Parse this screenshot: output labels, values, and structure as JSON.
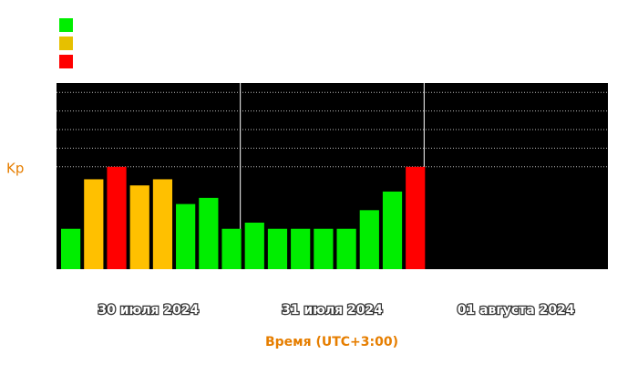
{
  "chart_data": {
    "type": "bar",
    "y_label": "Kp",
    "x_label": "Время (UTC+3:00)",
    "days": [
      "30 июля 2024",
      "31 июля 2024",
      "01 августа 2024"
    ],
    "slots_per_day": 8,
    "values": [
      1.67,
      4.33,
      5,
      4,
      4.33,
      3,
      3.33,
      1.67,
      2,
      1.67,
      1.67,
      1.67,
      1.67,
      2.67,
      3.67,
      5
    ],
    "colors": [
      "#00ee00",
      "#ffc000",
      "#ff0000",
      "#ffc000",
      "#ffc000",
      "#00ee00",
      "#00ee00",
      "#00ee00",
      "#00ee00",
      "#00ee00",
      "#00ee00",
      "#00ee00",
      "#00ee00",
      "#00ee00",
      "#00ee00",
      "#ff0000"
    ],
    "legend_colors": [
      "#00ee00",
      "#e6c000",
      "#ff0000"
    ],
    "ylim": [
      -0.5,
      9.5
    ],
    "grid_lines": [
      5,
      6,
      7,
      8,
      9
    ]
  }
}
